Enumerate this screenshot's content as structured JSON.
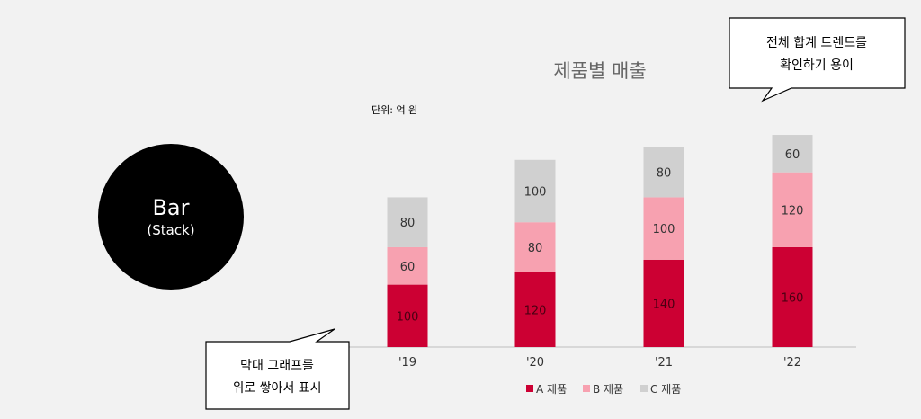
{
  "badge": {
    "title": "Bar",
    "subtitle": "(Stack)"
  },
  "callouts": {
    "top": [
      "전체 합계 트렌드를",
      "확인하기 용이"
    ],
    "bottom": [
      "막대 그래프를",
      "위로 쌓아서 표시"
    ]
  },
  "chart_data": {
    "type": "bar",
    "stacked": true,
    "title": "제품별 매출",
    "unit_label": "단위: 억 원",
    "categories": [
      "'19",
      "'20",
      "'21",
      "'22"
    ],
    "series": [
      {
        "name": "A 제품",
        "color": "#cc0033",
        "values": [
          100,
          120,
          140,
          160
        ]
      },
      {
        "name": "B 제품",
        "color": "#f7a1b0",
        "values": [
          60,
          80,
          100,
          120
        ]
      },
      {
        "name": "C 제품",
        "color": "#d0d0d0",
        "values": [
          80,
          100,
          80,
          60
        ]
      }
    ],
    "ylim": [
      0,
      340
    ],
    "grid": false,
    "legend_position": "bottom"
  }
}
